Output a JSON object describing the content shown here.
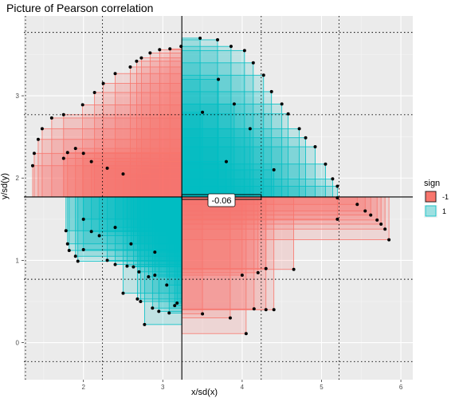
{
  "chart_data": {
    "type": "scatter",
    "title": "Picture of Pearson correlation",
    "xlabel": "x/sd(x)",
    "ylabel": "y/sd(y)",
    "xlim": [
      1.25,
      6.15
    ],
    "ylim": [
      -0.45,
      3.97
    ],
    "x_ticks": [
      2,
      3,
      4,
      5,
      6
    ],
    "y_ticks": [
      0,
      1,
      2,
      3
    ],
    "x_mean": 3.24,
    "y_mean": 1.77,
    "x_sd_lines": [
      1.27,
      2.24,
      4.24,
      5.22
    ],
    "y_sd_lines": [
      -0.23,
      0.77,
      2.77,
      3.77
    ],
    "annotation": "-0.06",
    "grid": true,
    "legend": {
      "title": "sign",
      "position": "right",
      "entries": [
        {
          "label": "-1",
          "color": "#F8766D"
        },
        {
          "label": "1",
          "color": "#00BFC4"
        }
      ]
    },
    "points": [
      [
        1.36,
        2.15
      ],
      [
        1.38,
        2.3
      ],
      [
        1.43,
        2.47
      ],
      [
        1.48,
        2.6
      ],
      [
        1.6,
        2.73
      ],
      [
        1.75,
        2.77
      ],
      [
        1.99,
        2.89
      ],
      [
        2.14,
        3.04
      ],
      [
        2.25,
        3.15
      ],
      [
        2.4,
        3.27
      ],
      [
        2.59,
        3.35
      ],
      [
        2.67,
        3.42
      ],
      [
        2.73,
        3.46
      ],
      [
        2.84,
        3.52
      ],
      [
        2.96,
        3.56
      ],
      [
        3.09,
        3.57
      ],
      [
        3.23,
        3.6
      ],
      [
        1.75,
        2.24
      ],
      [
        1.8,
        2.31
      ],
      [
        1.9,
        2.36
      ],
      [
        2.0,
        2.3
      ],
      [
        2.1,
        2.2
      ],
      [
        2.3,
        2.12
      ],
      [
        2.5,
        2.05
      ],
      [
        3.47,
        3.7
      ],
      [
        3.69,
        3.68
      ],
      [
        3.86,
        3.6
      ],
      [
        4.03,
        3.55
      ],
      [
        4.14,
        3.4
      ],
      [
        4.27,
        3.25
      ],
      [
        4.37,
        3.05
      ],
      [
        4.5,
        2.9
      ],
      [
        4.58,
        2.78
      ],
      [
        4.72,
        2.6
      ],
      [
        4.8,
        2.49
      ],
      [
        4.92,
        2.38
      ],
      [
        5.05,
        2.17
      ],
      [
        5.14,
        1.99
      ],
      [
        5.2,
        1.9
      ],
      [
        3.7,
        3.2
      ],
      [
        3.9,
        2.9
      ],
      [
        4.1,
        2.6
      ],
      [
        3.5,
        2.8
      ],
      [
        3.8,
        2.2
      ],
      [
        4.4,
        2.1
      ],
      [
        5.2,
        1.76
      ],
      [
        5.45,
        1.68
      ],
      [
        5.55,
        1.6
      ],
      [
        5.62,
        1.55
      ],
      [
        5.7,
        1.49
      ],
      [
        5.75,
        1.44
      ],
      [
        5.8,
        1.38
      ],
      [
        5.85,
        1.25
      ],
      [
        4.65,
        0.89
      ],
      [
        4.2,
        0.85
      ],
      [
        4.0,
        0.82
      ],
      [
        4.15,
        0.41
      ],
      [
        4.3,
        0.4
      ],
      [
        4.4,
        0.4
      ],
      [
        4.05,
        0.11
      ],
      [
        3.85,
        0.3
      ],
      [
        3.5,
        0.35
      ],
      [
        4.3,
        0.9
      ],
      [
        5.2,
        1.5
      ],
      [
        1.78,
        1.36
      ],
      [
        1.8,
        1.2
      ],
      [
        1.82,
        1.12
      ],
      [
        1.9,
        1.05
      ],
      [
        1.93,
        0.99
      ],
      [
        2.0,
        1.5
      ],
      [
        2.1,
        1.35
      ],
      [
        2.3,
        1.0
      ],
      [
        2.4,
        0.95
      ],
      [
        2.55,
        0.93
      ],
      [
        2.63,
        0.92
      ],
      [
        2.7,
        0.86
      ],
      [
        2.82,
        0.8
      ],
      [
        2.9,
        0.82
      ],
      [
        2.68,
        0.53
      ],
      [
        2.72,
        0.5
      ],
      [
        2.87,
        0.42
      ],
      [
        2.95,
        0.38
      ],
      [
        3.08,
        0.36
      ],
      [
        3.15,
        0.45
      ],
      [
        3.18,
        0.48
      ],
      [
        2.77,
        0.22
      ],
      [
        2.0,
        1.13
      ],
      [
        2.2,
        1.3
      ],
      [
        2.4,
        1.4
      ],
      [
        2.6,
        1.2
      ],
      [
        2.9,
        1.1
      ],
      [
        3.05,
        0.7
      ],
      [
        2.5,
        0.6
      ]
    ]
  }
}
